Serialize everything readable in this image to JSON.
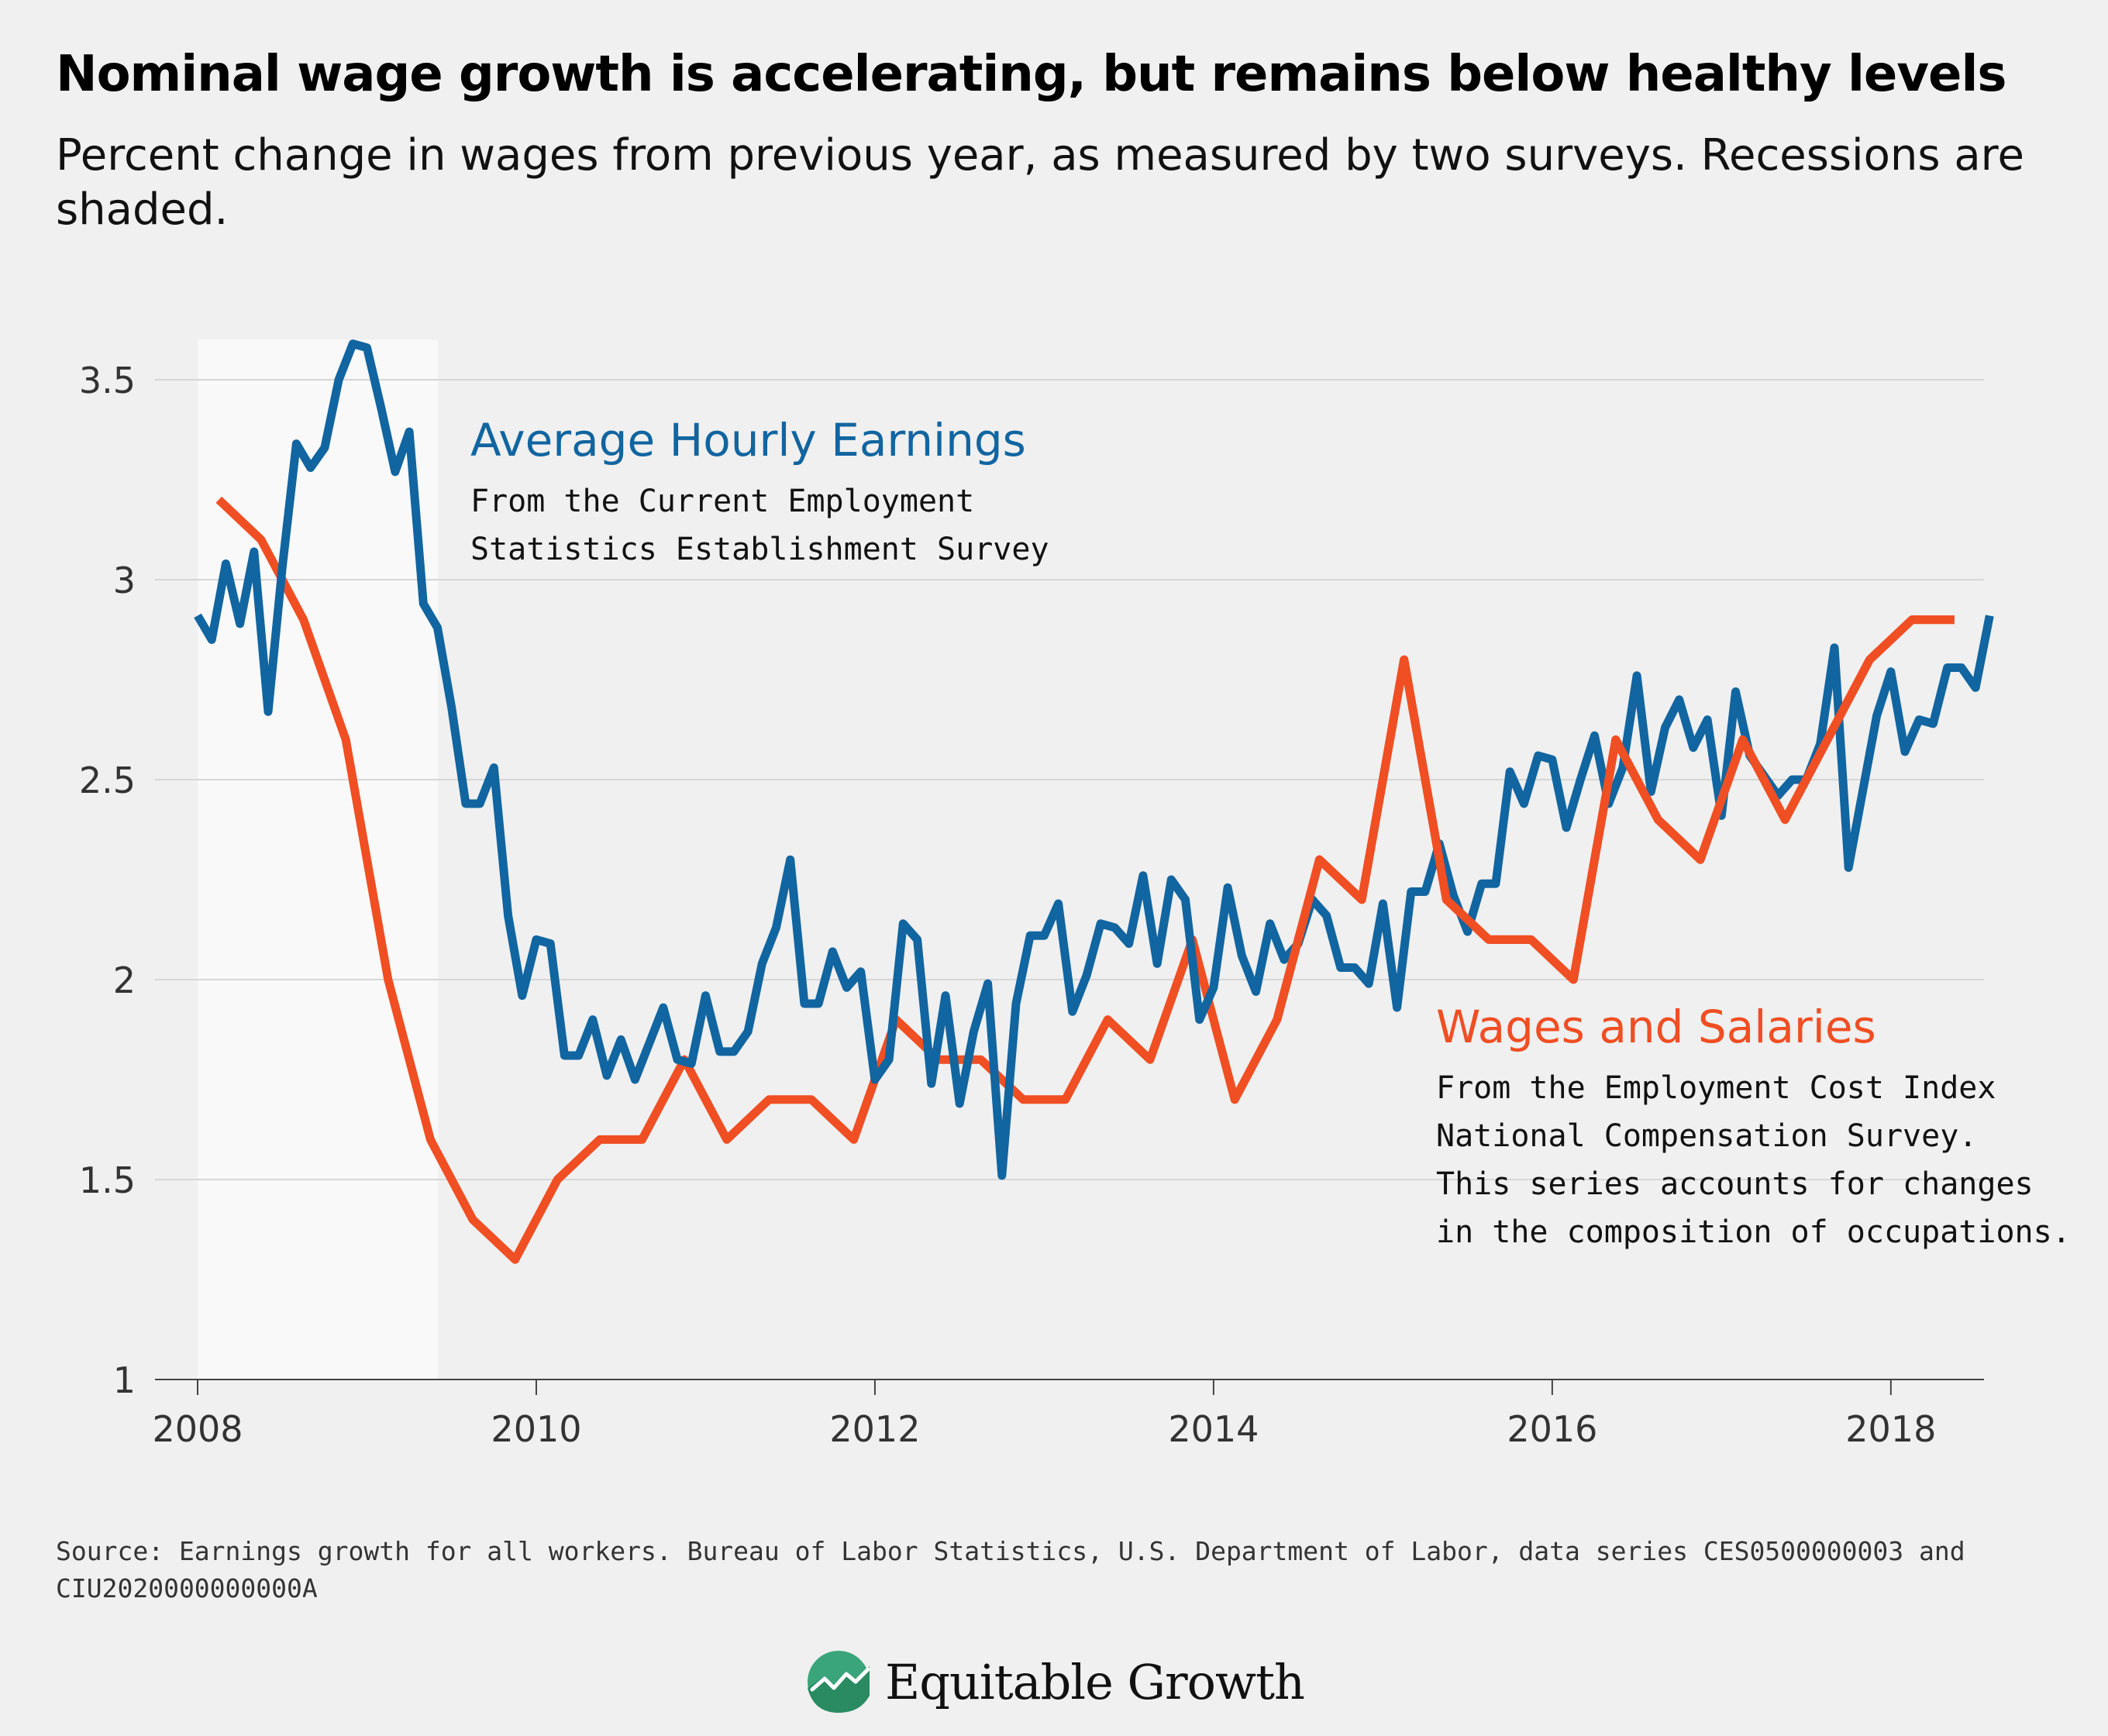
{
  "title": "Nominal wage growth is accelerating, but remains below healthy levels",
  "subtitle": "Percent change in wages from previous year, as measured by two surveys. Recessions are shaded.",
  "source": "Source: Earnings growth for all workers. Bureau of Labor Statistics, U.S. Department of Labor, data series CES0500000003 and CIU2020000000000A",
  "logo": {
    "text": "Equitable Growth",
    "icon": "rising-trend-icon"
  },
  "colors": {
    "ahe": "#1165a0",
    "wages": "#f04e23",
    "recession": "#f9f9f9",
    "grid": "#d6d6d6",
    "axis": "#444444"
  },
  "chart_data": {
    "type": "line",
    "title": "Nominal wage growth is accelerating, but remains below healthy levels",
    "subtitle": "Percent change in wages from previous year, as measured by two surveys. Recessions are shaded.",
    "xlabel": "",
    "ylabel": "",
    "xlim": [
      2008,
      2018.55
    ],
    "ylim": [
      1,
      3.6
    ],
    "x_ticks": [
      2008,
      2010,
      2012,
      2014,
      2016,
      2018
    ],
    "y_ticks": [
      1,
      1.5,
      2,
      2.5,
      3,
      3.5
    ],
    "y_tick_labels": [
      "1",
      "1.5",
      "2",
      "2.5",
      "3",
      "3.5"
    ],
    "grid": true,
    "recession": [
      2008,
      2009.42
    ],
    "series": [
      {
        "name": "Average Hourly Earnings",
        "note": [
          "From the Current Employment",
          "Statistics Establishment Survey"
        ],
        "color": "#1165a0",
        "x_start": 2008,
        "x_step": 0.083333,
        "values": [
          2.91,
          2.85,
          3.04,
          2.89,
          3.07,
          2.67,
          3.03,
          3.34,
          3.28,
          3.33,
          3.5,
          3.59,
          3.58,
          3.43,
          3.27,
          3.37,
          2.94,
          2.88,
          2.68,
          2.44,
          2.44,
          2.53,
          2.16,
          1.96,
          2.1,
          2.09,
          1.81,
          1.81,
          1.9,
          1.76,
          1.85,
          1.75,
          1.84,
          1.93,
          1.8,
          1.79,
          1.96,
          1.82,
          1.82,
          1.87,
          2.04,
          2.13,
          2.3,
          1.94,
          1.94,
          2.07,
          1.98,
          2.02,
          1.75,
          1.8,
          2.14,
          2.1,
          1.74,
          1.96,
          1.69,
          1.87,
          1.99,
          1.51,
          1.94,
          2.11,
          2.11,
          2.19,
          1.92,
          2.01,
          2.14,
          2.13,
          2.09,
          2.26,
          2.04,
          2.25,
          2.2,
          1.9,
          1.98,
          2.23,
          2.06,
          1.97,
          2.14,
          2.05,
          2.09,
          2.2,
          2.16,
          2.03,
          2.03,
          1.99,
          2.19,
          1.93,
          2.22,
          2.22,
          2.34,
          2.21,
          2.12,
          2.24,
          2.24,
          2.52,
          2.44,
          2.56,
          2.55,
          2.38,
          2.5,
          2.61,
          2.44,
          2.53,
          2.76,
          2.47,
          2.63,
          2.7,
          2.58,
          2.65,
          2.41,
          2.72,
          2.56,
          2.51,
          2.46,
          2.5,
          2.5,
          2.59,
          2.83,
          2.28,
          2.47,
          2.66,
          2.77,
          2.57,
          2.65,
          2.64,
          2.78,
          2.78,
          2.73,
          2.91
        ]
      },
      {
        "name": "Wages and Salaries",
        "note": [
          "From the Employment Cost Index",
          "National Compensation Survey.",
          "This series accounts for changes",
          "in the composition of occupations."
        ],
        "color": "#f04e23",
        "x": [
          2008.125,
          2008.375,
          2008.625,
          2008.875,
          2009.125,
          2009.375,
          2009.625,
          2009.875,
          2010.125,
          2010.375,
          2010.625,
          2010.875,
          2011.125,
          2011.375,
          2011.625,
          2011.875,
          2012.125,
          2012.375,
          2012.625,
          2012.875,
          2013.125,
          2013.375,
          2013.625,
          2013.875,
          2014.125,
          2014.375,
          2014.625,
          2014.875,
          2015.125,
          2015.375,
          2015.625,
          2015.875,
          2016.125,
          2016.375,
          2016.625,
          2016.875,
          2017.125,
          2017.375,
          2017.625,
          2017.875,
          2018.125,
          2018.375
        ],
        "values": [
          3.2,
          3.1,
          2.9,
          2.6,
          2.0,
          1.6,
          1.4,
          1.3,
          1.5,
          1.6,
          1.6,
          1.8,
          1.6,
          1.7,
          1.7,
          1.6,
          1.9,
          1.8,
          1.8,
          1.7,
          1.7,
          1.9,
          1.8,
          2.1,
          1.7,
          1.9,
          2.3,
          2.2,
          2.8,
          2.2,
          2.1,
          2.1,
          2.0,
          2.6,
          2.4,
          2.3,
          2.6,
          2.4,
          2.6,
          2.8,
          2.9,
          2.9
        ]
      }
    ]
  }
}
